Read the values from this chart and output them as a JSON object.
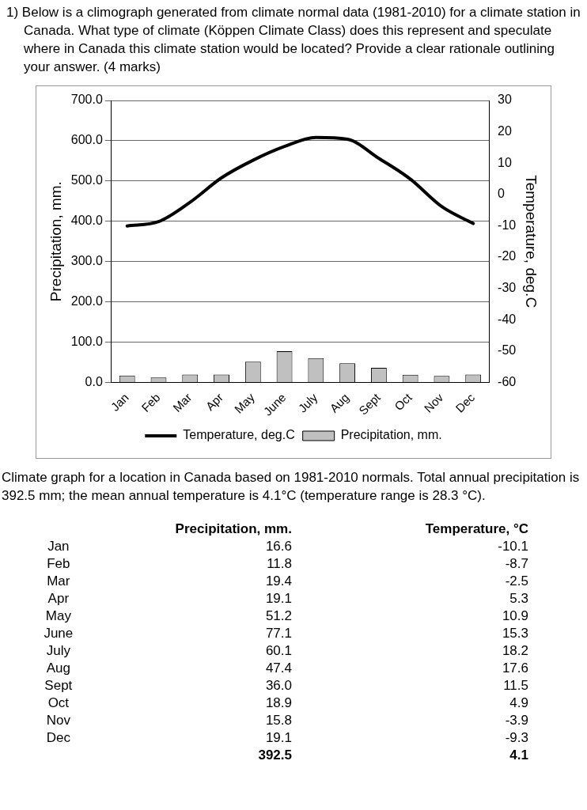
{
  "chart_data": [
    {
      "type": "bar",
      "title": "1)  Below is a climograph generated from climate normal data (1981-2010) for a climate station in Canada. What type of climate (Köppen Climate Class) does this represent and speculate where in Canada this climate station would be located? Provide a clear rationale outlining your answer. (4 marks)",
      "categories": [
        "Jan",
        "Feb",
        "Mar",
        "Apr",
        "May",
        "June",
        "July",
        "Aug",
        "Sept",
        "Oct",
        "Nov",
        "Dec"
      ],
      "series": [
        {
          "name": "Precipitation, mm.",
          "type": "bar",
          "color": "#c0c0c0",
          "values": [
            16.6,
            11.8,
            19.4,
            19.1,
            51.2,
            77.1,
            60.1,
            47.4,
            36.0,
            18.9,
            15.8,
            19.1
          ]
        },
        {
          "name": "Temperature, deg.C",
          "type": "line",
          "axis": "y2",
          "color": "#000000",
          "values": [
            -10.1,
            -8.7,
            -2.5,
            5.3,
            10.9,
            15.3,
            18.2,
            17.6,
            11.5,
            4.9,
            -3.9,
            -9.3
          ]
        }
      ],
      "ylabel": "Precipitation, mm.",
      "y2label": "Temperature, deg.C",
      "ylim": [
        0,
        700
      ],
      "yticks": [
        {
          "value": 0,
          "label": "0.0"
        },
        {
          "value": 100,
          "label": "100.0"
        },
        {
          "value": 200,
          "label": "200.0"
        },
        {
          "value": 300,
          "label": "300.0"
        },
        {
          "value": 400,
          "label": "400.0"
        },
        {
          "value": 500,
          "label": "500.0"
        },
        {
          "value": 600,
          "label": "600.0"
        },
        {
          "value": 700,
          "label": "700.0"
        }
      ],
      "y2lim": [
        -60,
        30
      ],
      "y2ticks": [
        -60,
        -50,
        -40,
        -30,
        -20,
        -10,
        0,
        10,
        20,
        30
      ],
      "grid": "y",
      "legend": "bottom",
      "marker": "none",
      "line_style": "solid",
      "annotations": [
        "Climate graph for a location in Canada based on 1981-2010 normals. Total annual precipitation is 392.5 mm; the mean annual temperature is 4.1°C (temperature range is 28.3 °C)."
      ]
    },
    {
      "type": "other",
      "categories": [
        "Jan",
        "Feb",
        "Mar",
        "Apr",
        "May",
        "June",
        "July",
        "Aug",
        "Sept",
        "Oct",
        "Nov",
        "Dec"
      ],
      "series": [
        {
          "name": "Precipitation, mm.",
          "values": [
            16.6,
            11.8,
            19.4,
            19.1,
            51.2,
            77.1,
            60.1,
            47.4,
            36.0,
            18.9,
            15.8,
            19.1
          ],
          "value_labels": [
            "16.6",
            "11.8",
            "19.4",
            "19.1",
            "51.2",
            "77.1",
            "60.1",
            "47.4",
            "36.0",
            "18.9",
            "15.8",
            "19.1"
          ]
        },
        {
          "name": "Temperature, °C",
          "values": [
            -10.1,
            -8.7,
            -2.5,
            5.3,
            10.9,
            15.3,
            18.2,
            17.6,
            11.5,
            4.9,
            -3.9,
            -9.3
          ],
          "value_labels": [
            "-10.1",
            "-8.7",
            "-2.5",
            "5.3",
            "10.9",
            "15.3",
            "18.2",
            "17.6",
            "11.5",
            "4.9",
            "-3.9",
            "-9.3"
          ]
        }
      ],
      "data_labels": true,
      "annotations": [
        "392.5",
        "4.1"
      ]
    }
  ]
}
